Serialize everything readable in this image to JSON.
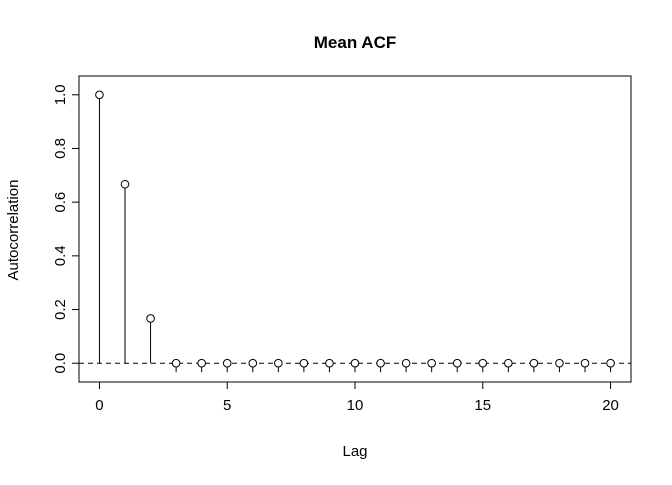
{
  "chart_data": {
    "type": "stem",
    "title": "Mean ACF",
    "xlabel": "Lag",
    "ylabel": "Autocorrelation",
    "x": [
      0,
      1,
      2,
      3,
      4,
      5,
      6,
      7,
      8,
      9,
      10,
      11,
      12,
      13,
      14,
      15,
      16,
      17,
      18,
      19,
      20
    ],
    "values": [
      1.0,
      0.6667,
      0.1667,
      0.0,
      0.0,
      0.0,
      0.0,
      0.0,
      0.0,
      0.0,
      0.0,
      0.0,
      0.0,
      0.0,
      0.0,
      0.0,
      0.0,
      0.0,
      0.0,
      0.0,
      0.0
    ],
    "xlim": [
      -0.8,
      20.8
    ],
    "ylim": [
      -0.07,
      1.07
    ],
    "x_ticks": [
      0,
      5,
      10,
      15,
      20
    ],
    "y_ticks": [
      0.0,
      0.2,
      0.4,
      0.6,
      0.8,
      1.0
    ],
    "x_tick_labels": [
      "0",
      "5",
      "10",
      "15",
      "20"
    ],
    "y_tick_labels": [
      "0.0",
      "0.2",
      "0.4",
      "0.6",
      "0.8",
      "1.0"
    ],
    "reference_line": 0,
    "grid": false,
    "marker": "open-circle",
    "colors": {
      "stroke": "#000000",
      "background": "#ffffff"
    }
  }
}
